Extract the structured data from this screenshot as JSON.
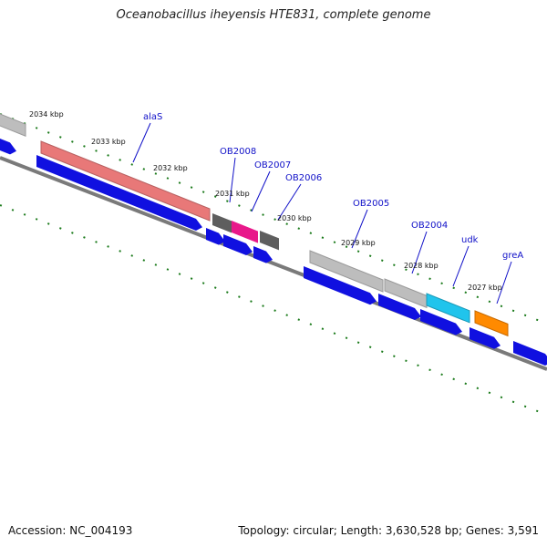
{
  "title": "Oceanobacillus iheyensis HTE831, complete genome",
  "footer": {
    "accession": "Accession: NC_004193",
    "meta": "Topology: circular; Length: 3,630,528 bp; Genes: 3,591"
  },
  "colors": {
    "backbone": "#7a7a7a",
    "cds": "#1010e0",
    "tick": "#1a7a1a",
    "label": "#1010c8",
    "rrna": "#e87878",
    "gene_grey": "#bdbdbd",
    "gene_dark": "#5e5e5e",
    "gene_pink": "#e8188a",
    "gene_cyan": "#20c4ec",
    "gene_orange": "#ff8a00"
  },
  "tick_labels": [
    "2034 kbp",
    "2033 kbp",
    "2032 kbp",
    "2031 kbp",
    "2030 kbp",
    "2029 kbp",
    "2028 kbp",
    "2027 kbp"
  ],
  "gene_labels": [
    "alaS",
    "OB2008",
    "OB2007",
    "OB2006",
    "OB2005",
    "OB2004",
    "udk",
    "greA"
  ]
}
